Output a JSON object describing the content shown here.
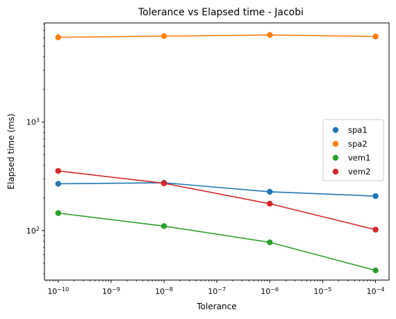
{
  "chart_data": {
    "type": "line",
    "title": "Tolerance vs Elapsed time - Jacobi",
    "xlabel": "Tolerance",
    "ylabel": "Elapsed time (ms)",
    "x_scale": "log",
    "y_scale": "log",
    "x": [
      1e-10,
      1e-08,
      1e-06,
      0.0001
    ],
    "x_ticks": [
      {
        "value": 1e-10,
        "exp": "−10"
      },
      {
        "value": 1e-09,
        "exp": "−9"
      },
      {
        "value": 1e-08,
        "exp": "−8"
      },
      {
        "value": 1e-07,
        "exp": "−7"
      },
      {
        "value": 1e-06,
        "exp": "−6"
      },
      {
        "value": 1e-05,
        "exp": "−5"
      },
      {
        "value": 0.0001,
        "exp": "−4"
      }
    ],
    "y_ticks": [
      {
        "value": 100,
        "exp": "2"
      },
      {
        "value": 1000,
        "exp": "3"
      }
    ],
    "xlim": [
      5.5e-11,
      0.00018
    ],
    "ylim": [
      35,
      8200
    ],
    "grid": false,
    "legend_position": "center-right",
    "series": [
      {
        "name": "spa1",
        "color": "#1f77b4",
        "values": [
          270,
          276,
          228,
          208
        ]
      },
      {
        "name": "spa2",
        "color": "#ff7f0e",
        "values": [
          6050,
          6200,
          6350,
          6150
        ]
      },
      {
        "name": "vem1",
        "color": "#2ca02c",
        "values": [
          145,
          110,
          78,
          43
        ]
      },
      {
        "name": "vem2",
        "color": "#d62728",
        "values": [
          355,
          273,
          177,
          102
        ]
      }
    ]
  }
}
